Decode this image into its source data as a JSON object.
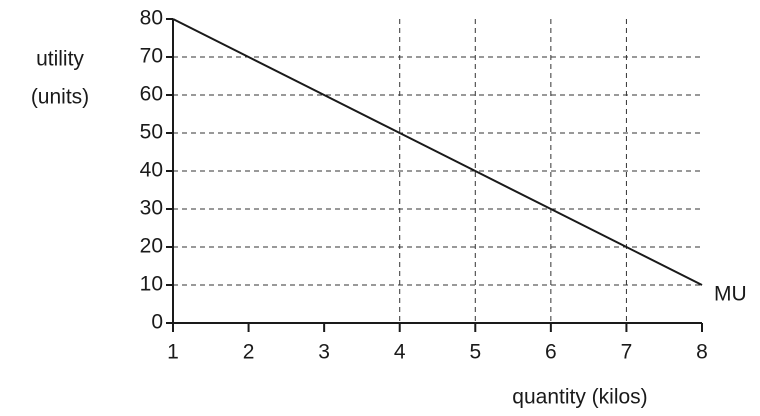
{
  "chart_data": {
    "type": "line",
    "xlabel": "quantity (kilos)",
    "ylabel": [
      "utility",
      "(units)"
    ],
    "x": [
      1,
      2,
      3,
      4,
      5,
      6,
      7,
      8
    ],
    "series": [
      {
        "name": "MU",
        "color": "#1a1a1a",
        "values": [
          80,
          70,
          60,
          50,
          40,
          30,
          20,
          10
        ]
      }
    ],
    "xlim": [
      1,
      8
    ],
    "ylim": [
      0,
      80
    ],
    "xticks": [
      1,
      2,
      3,
      4,
      5,
      6,
      7,
      8
    ],
    "yticks": [
      0,
      10,
      20,
      30,
      40,
      50,
      60,
      70,
      80
    ],
    "xgrid": [
      4,
      5,
      6,
      7
    ],
    "ygrid": [
      10,
      20,
      30,
      40,
      50,
      60,
      70
    ]
  }
}
